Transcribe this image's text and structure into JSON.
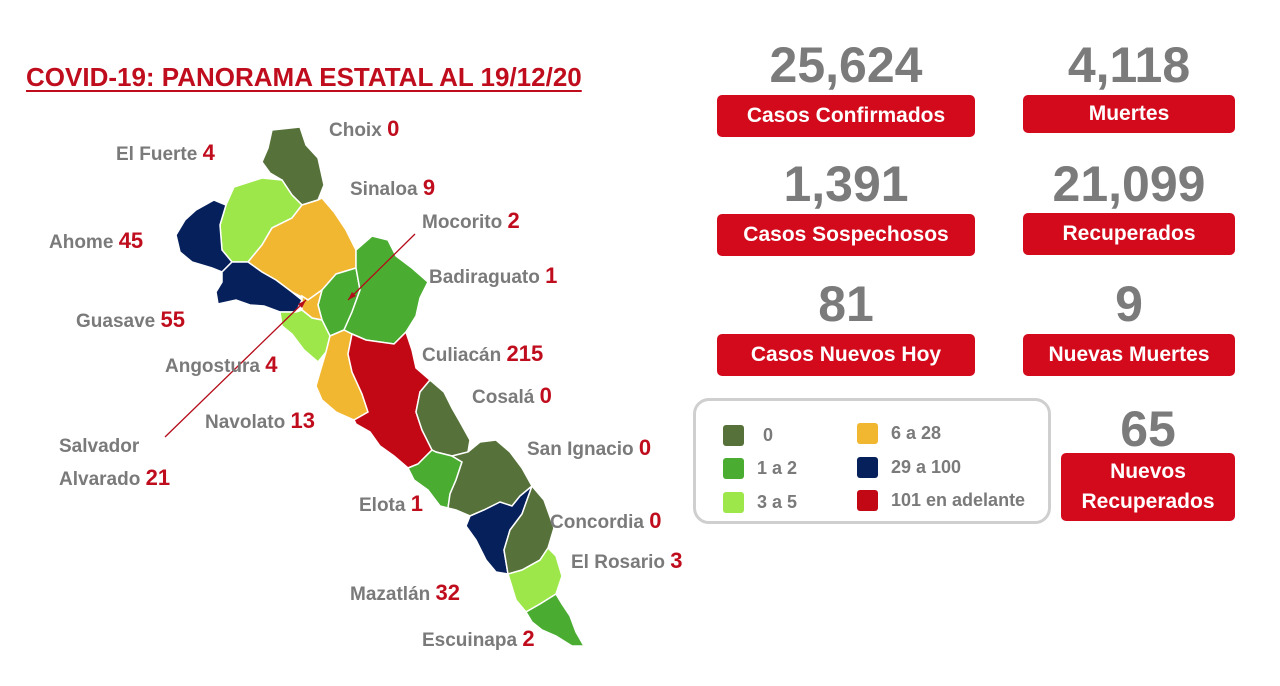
{
  "title": "COVID-19: PANORAMA ESTATAL AL 19/12/20",
  "colors": {
    "c0": "#56723a",
    "c1_2": "#4aad32",
    "c3_5": "#9de74a",
    "c6_28": "#f2b731",
    "c29_100": "#06205c",
    "c101": "#c20815",
    "accent_red": "#d30a1c",
    "gray_text": "#7b7b7b"
  },
  "municipalities": [
    {
      "name": "Choix",
      "value": "0"
    },
    {
      "name": "El Fuerte",
      "value": "4"
    },
    {
      "name": "Sinaloa",
      "value": "9"
    },
    {
      "name": "Mocorito",
      "value": "2"
    },
    {
      "name": "Ahome",
      "value": "45"
    },
    {
      "name": "Badiraguato",
      "value": "1"
    },
    {
      "name": "Guasave",
      "value": "55"
    },
    {
      "name": "Culiacán",
      "value": "215"
    },
    {
      "name": "Angostura",
      "value": "4"
    },
    {
      "name": "Cosalá",
      "value": "0"
    },
    {
      "name": "Navolato",
      "value": "13"
    },
    {
      "name": "Salvador",
      "name2": "Alvarado",
      "value": "21"
    },
    {
      "name": "San Ignacio",
      "value": "0"
    },
    {
      "name": "Elota",
      "value": "1"
    },
    {
      "name": "Concordia",
      "value": "0"
    },
    {
      "name": "El Rosario",
      "value": "3"
    },
    {
      "name": "Mazatlán",
      "value": "32"
    },
    {
      "name": "Escuinapa",
      "value": "2"
    }
  ],
  "stats": {
    "confirmados": {
      "value": "25,624",
      "label": "Casos Confirmados"
    },
    "muertes": {
      "value": "4,118",
      "label": "Muertes"
    },
    "sospechosos": {
      "value": "1,391",
      "label": "Casos Sospechosos"
    },
    "recuperados": {
      "value": "21,099",
      "label": "Recuperados"
    },
    "nuevos_hoy": {
      "value": "81",
      "label": "Casos Nuevos Hoy"
    },
    "nuevas_muertes": {
      "value": "9",
      "label": "Nuevas Muertes"
    },
    "nuevos_recuperados": {
      "value": "65",
      "label1": "Nuevos",
      "label2": "Recuperados"
    }
  },
  "legend": [
    {
      "label": "0",
      "color": "#56723a"
    },
    {
      "label": "1 a 2",
      "color": "#4aad32"
    },
    {
      "label": "3 a 5",
      "color": "#9de74a"
    },
    {
      "label": "6 a 28",
      "color": "#f2b731"
    },
    {
      "label": "29 a 100",
      "color": "#06205c"
    },
    {
      "label": "101 en adelante",
      "color": "#c20815"
    }
  ]
}
